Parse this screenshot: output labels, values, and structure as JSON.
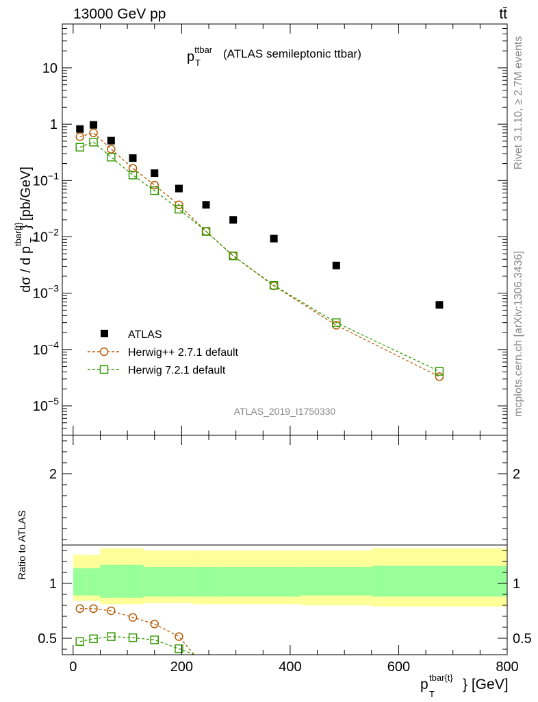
{
  "header": {
    "left": "13000 GeV pp",
    "right": "tt̄"
  },
  "side": {
    "rivet": "Rivet 3.1.10, ≥ 2.7M events",
    "mcplots": "mcplots.cern.ch [arXiv:1306.3436]"
  },
  "main": {
    "title_p": "p",
    "title_sup": "ttbar",
    "title_sub": "T",
    "title_rest": "(ATLAS semileptonic ttbar)",
    "analysis_id": "ATLAS_2019_I1750330",
    "ylabel_part1": "dσ / d p",
    "ylabel_sup": "tbar{t}",
    "ylabel_sub": "T",
    "ylabel_part2": "} [pb/GeV]"
  },
  "ratio": {
    "ylabel": "Ratio to ATLAS"
  },
  "xaxis": {
    "label_p": "p",
    "label_sup": "tbar{t}",
    "label_sub": "T",
    "label_rest": "} [GeV]"
  },
  "legend": [
    {
      "label": "ATLAS"
    },
    {
      "label": "Herwig++ 2.7.1 default"
    },
    {
      "label": "Herwig 7.2.1 default"
    }
  ],
  "colors": {
    "data": "#000000",
    "herwigpp": "#b35900",
    "herwig7": "#339900",
    "band_outer": "#ffff99",
    "band_inner": "#99ff99"
  },
  "chart_data": [
    {
      "type": "scatter",
      "scale": "log",
      "xlim": [
        -20,
        800
      ],
      "ylim": [
        3e-06,
        60
      ],
      "x_ticks": [
        "0",
        "200",
        "400",
        "600",
        "800"
      ],
      "y_ticks": [
        "10^-5",
        "10^-4",
        "10^-3",
        "10^-2",
        "10^-1",
        "1",
        "10"
      ],
      "x": [
        12.5,
        37.5,
        70,
        110,
        150,
        195,
        245,
        295,
        370,
        485,
        675
      ],
      "series": [
        {
          "name": "ATLAS",
          "marker": "filled-square",
          "values": [
            0.82,
            0.97,
            0.51,
            0.25,
            0.135,
            0.072,
            0.037,
            0.02,
            0.0093,
            0.0031,
            0.00062
          ]
        },
        {
          "name": "Herwig++ 2.7.1 default",
          "marker": "open-circle",
          "line": "dashed",
          "values": [
            0.6,
            0.7,
            0.36,
            0.165,
            0.083,
            0.037,
            0.0125,
            0.0046,
            0.00135,
            0.00027,
            3.3e-05
          ]
        },
        {
          "name": "Herwig 7.2.1 default",
          "marker": "open-square",
          "line": "dashed",
          "values": [
            0.39,
            0.48,
            0.26,
            0.125,
            0.066,
            0.031,
            0.0125,
            0.0046,
            0.00138,
            0.0003,
            4.1e-05
          ]
        }
      ]
    },
    {
      "type": "line",
      "xlim": [
        -20,
        800
      ],
      "ylim": [
        0.35,
        2.35
      ],
      "x_ticks": [
        "0",
        "200",
        "400",
        "600",
        "800"
      ],
      "y_ticks": [
        "0.5",
        "1",
        "2"
      ],
      "x": [
        12.5,
        37.5,
        70,
        110,
        150,
        195
      ],
      "bins": [
        0,
        25,
        50,
        90,
        130,
        170,
        220,
        270,
        320,
        420,
        550,
        800
      ],
      "band_outer_lo": [
        0.84,
        0.84,
        0.81,
        0.81,
        0.82,
        0.82,
        0.81,
        0.81,
        0.81,
        0.8,
        0.79
      ],
      "band_outer_hi": [
        1.26,
        1.26,
        1.32,
        1.32,
        1.3,
        1.3,
        1.3,
        1.3,
        1.3,
        1.3,
        1.32
      ],
      "band_inner_lo": [
        0.89,
        0.89,
        0.87,
        0.87,
        0.88,
        0.88,
        0.88,
        0.88,
        0.88,
        0.89,
        0.88
      ],
      "band_inner_hi": [
        1.14,
        1.14,
        1.17,
        1.17,
        1.15,
        1.15,
        1.15,
        1.15,
        1.15,
        1.15,
        1.16
      ],
      "series": [
        {
          "name": "Herwig++ 2.7.1 default",
          "values": [
            0.77,
            0.77,
            0.75,
            0.69,
            0.63,
            0.515
          ]
        },
        {
          "name": "Herwig 7.2.1 default",
          "values": [
            0.47,
            0.495,
            0.515,
            0.505,
            0.485,
            0.405
          ]
        }
      ]
    }
  ]
}
